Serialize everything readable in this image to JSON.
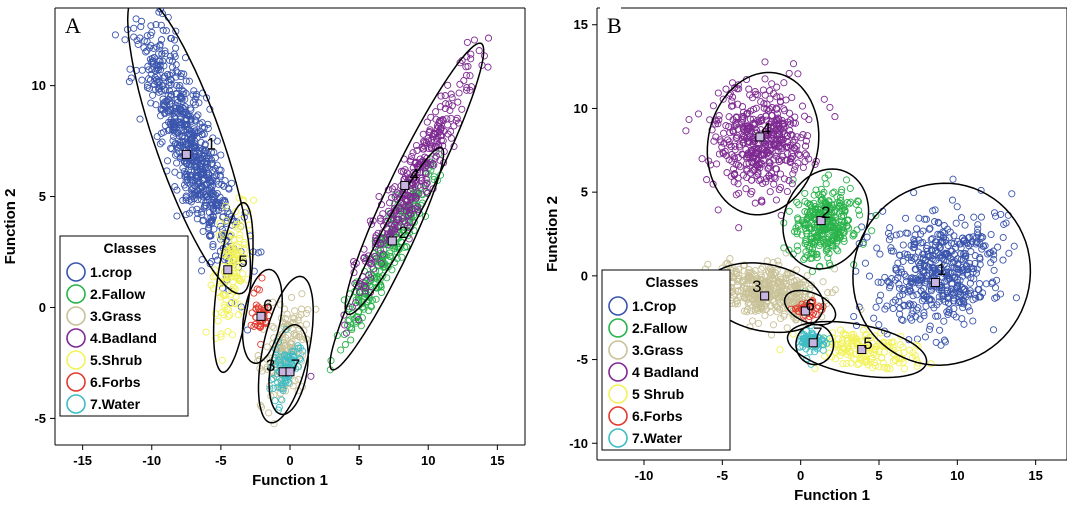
{
  "colors": {
    "c1": "#3a55ad",
    "c2": "#29b34a",
    "c3": "#c9c298",
    "c4": "#7e2a92",
    "c5": "#f2f25a",
    "c6": "#e23a2e",
    "c7": "#3fbcc4",
    "centroid": "#c8b4e0"
  },
  "chart_data": [
    {
      "type": "scatter",
      "panel_label": "A",
      "xlabel": "Function 1",
      "ylabel": "Function 2",
      "xlim": [
        -17,
        17
      ],
      "ylim": [
        -6.2,
        13.5
      ],
      "xticks": [
        -15,
        -10,
        -5,
        0,
        5,
        10,
        15
      ],
      "yticks": [
        -5,
        0,
        5,
        10
      ],
      "legend": {
        "title": "Classes",
        "position": "bottom-left",
        "entries": [
          "1.crop",
          "2.Fallow",
          "3.Grass",
          "4.Badland",
          "5.Shrub",
          "6.Forbs",
          "7.Water"
        ]
      },
      "classes": [
        {
          "id": "1",
          "centroid": [
            -7.5,
            6.9
          ],
          "label_pos": [
            -5.7,
            7.4
          ],
          "ellipse": {
            "cx": -7.3,
            "cy": 7.4,
            "rx": 7.8,
            "ry": 2.2,
            "angle": -59
          },
          "cluster": {
            "cx": -7.3,
            "cy": 7.4,
            "sx": 3.3,
            "sy": 0.8,
            "angle": -59,
            "n": 700
          }
        },
        {
          "id": "2",
          "centroid": [
            7.4,
            3.0
          ],
          "label_pos": [
            8.2,
            3.4
          ],
          "ellipse": {
            "cx": 7.0,
            "cy": 2.2,
            "rx": 6.4,
            "ry": 1.05,
            "angle": 51
          },
          "cluster": {
            "cx": 7.0,
            "cy": 2.4,
            "sx": 2.6,
            "sy": 0.42,
            "angle": 51,
            "n": 260
          }
        },
        {
          "id": "3",
          "centroid": [
            -0.5,
            -2.9
          ],
          "label_pos": [
            -1.4,
            -2.6
          ],
          "ellipse": {
            "cx": -0.3,
            "cy": -1.9,
            "rx": 3.5,
            "ry": 1.6,
            "angle": 68
          },
          "cluster": {
            "cx": -0.4,
            "cy": -1.9,
            "sx": 1.2,
            "sy": 0.7,
            "angle": 68,
            "n": 170
          }
        },
        {
          "id": "4",
          "centroid": [
            8.3,
            5.5
          ],
          "label_pos": [
            9.0,
            6.0
          ],
          "ellipse": {
            "cx": 9.0,
            "cy": 5.8,
            "rx": 7.8,
            "ry": 1.3,
            "angle": 51
          },
          "cluster": {
            "cx": 9.0,
            "cy": 5.8,
            "sx": 3.4,
            "sy": 0.5,
            "angle": 51,
            "n": 330
          }
        },
        {
          "id": "5",
          "centroid": [
            -4.5,
            1.7
          ],
          "label_pos": [
            -3.4,
            2.1
          ],
          "ellipse": {
            "cx": -4.1,
            "cy": 0.9,
            "rx": 3.9,
            "ry": 1.2,
            "angle": 78
          },
          "cluster": {
            "cx": -4.3,
            "cy": 1.6,
            "sx": 1.6,
            "sy": 0.5,
            "angle": 78,
            "n": 140
          }
        },
        {
          "id": "6",
          "centroid": [
            -2.1,
            -0.4
          ],
          "label_pos": [
            -1.6,
            0.1
          ],
          "ellipse": {
            "cx": -2.0,
            "cy": -0.4,
            "rx": 2.2,
            "ry": 1.3,
            "angle": 70
          },
          "cluster": {
            "cx": -2.1,
            "cy": -0.4,
            "sx": 0.55,
            "sy": 0.35,
            "angle": 70,
            "n": 35
          }
        },
        {
          "id": "7",
          "centroid": [
            0.0,
            -2.9
          ],
          "label_pos": [
            0.4,
            -2.6
          ],
          "ellipse": {
            "cx": -0.1,
            "cy": -2.8,
            "rx": 2.1,
            "ry": 1.3,
            "angle": 70
          },
          "cluster": {
            "cx": -0.4,
            "cy": -2.8,
            "sx": 0.7,
            "sy": 0.4,
            "angle": 60,
            "n": 90
          }
        }
      ]
    },
    {
      "type": "scatter",
      "panel_label": "B",
      "xlabel": "Function 1",
      "ylabel": "Function 2",
      "xlim": [
        -13,
        17
      ],
      "ylim": [
        -11,
        16
      ],
      "xticks": [
        -10,
        -5,
        0,
        5,
        10,
        15
      ],
      "yticks": [
        -10,
        -5,
        0,
        5,
        10,
        15
      ],
      "legend": {
        "title": "Classes",
        "position": "bottom-left",
        "entries": [
          "1.Crop",
          "2.Fallow",
          "3.Grass",
          "4 Badland",
          "5 Shrub",
          "6.Forbs",
          "7.Water"
        ]
      },
      "classes": [
        {
          "id": "1",
          "centroid": [
            8.6,
            -0.4
          ],
          "label_pos": [
            9.0,
            0.4
          ],
          "ellipse": {
            "cx": 9.0,
            "cy": 0.1,
            "rx": 5.7,
            "ry": 5.4,
            "angle": 20
          },
          "cluster": {
            "cx": 8.9,
            "cy": 0.3,
            "sx": 2.0,
            "sy": 1.7,
            "angle": 20,
            "n": 520
          }
        },
        {
          "id": "2",
          "centroid": [
            1.3,
            3.3
          ],
          "label_pos": [
            1.6,
            3.8
          ],
          "ellipse": {
            "cx": 1.6,
            "cy": 3.4,
            "rx": 3.1,
            "ry": 2.6,
            "angle": 60
          },
          "cluster": {
            "cx": 1.5,
            "cy": 3.2,
            "sx": 1.1,
            "sy": 0.95,
            "angle": 60,
            "n": 320
          }
        },
        {
          "id": "3",
          "centroid": [
            -2.3,
            -1.2
          ],
          "label_pos": [
            -2.8,
            -0.6
          ],
          "ellipse": {
            "cx": -2.3,
            "cy": -1.3,
            "rx": 3.8,
            "ry": 2.0,
            "angle": -10
          },
          "cluster": {
            "cx": -2.0,
            "cy": -1.0,
            "sx": 1.7,
            "sy": 0.8,
            "angle": -10,
            "n": 420
          }
        },
        {
          "id": "4",
          "centroid": [
            -2.6,
            8.3
          ],
          "label_pos": [
            -2.2,
            8.8
          ],
          "ellipse": {
            "cx": -2.4,
            "cy": 7.9,
            "rx": 4.3,
            "ry": 3.5,
            "angle": 75
          },
          "cluster": {
            "cx": -2.5,
            "cy": 8.0,
            "sx": 1.7,
            "sy": 1.5,
            "angle": 75,
            "n": 460
          }
        },
        {
          "id": "5",
          "centroid": [
            3.9,
            -4.4
          ],
          "label_pos": [
            4.3,
            -4.0
          ],
          "ellipse": {
            "cx": 3.6,
            "cy": -4.4,
            "rx": 4.5,
            "ry": 1.5,
            "angle": -10
          },
          "cluster": {
            "cx": 4.0,
            "cy": -4.5,
            "sx": 1.7,
            "sy": 0.55,
            "angle": -10,
            "n": 170
          }
        },
        {
          "id": "6",
          "centroid": [
            0.3,
            -2.1
          ],
          "label_pos": [
            0.6,
            -1.7
          ],
          "ellipse": {
            "cx": 0.6,
            "cy": -1.9,
            "rx": 1.7,
            "ry": 0.9,
            "angle": -20
          },
          "cluster": {
            "cx": 0.2,
            "cy": -2.0,
            "sx": 0.5,
            "sy": 0.3,
            "angle": 0,
            "n": 35
          }
        },
        {
          "id": "7",
          "centroid": [
            0.8,
            -4.0
          ],
          "label_pos": [
            1.1,
            -3.4
          ],
          "ellipse": {
            "cx": 0.9,
            "cy": -4.1,
            "rx": 1.2,
            "ry": 1.2,
            "angle": 0
          },
          "cluster": {
            "cx": 0.7,
            "cy": -3.9,
            "sx": 0.5,
            "sy": 0.35,
            "angle": 0,
            "n": 70
          }
        }
      ]
    }
  ]
}
